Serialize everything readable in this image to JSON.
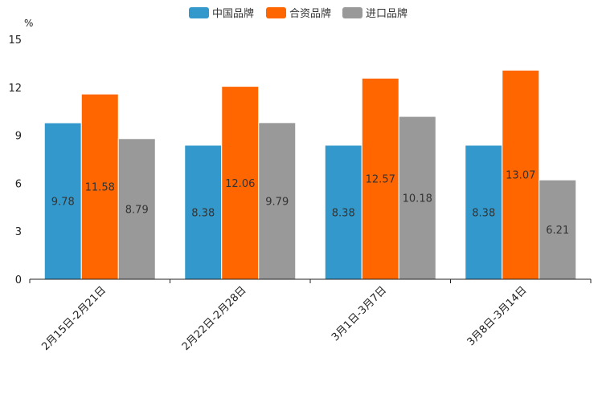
{
  "chart_data": {
    "type": "bar",
    "ylabel": "%",
    "ylim": [
      0,
      15
    ],
    "yticks": [
      0,
      3,
      6,
      9,
      12,
      15
    ],
    "categories": [
      "2月15日-2月21日",
      "2月22日-2月28日",
      "3月1日-3月7日",
      "3月8日-3月14日"
    ],
    "series": [
      {
        "name": "中国品牌",
        "color": "#3399cc",
        "values": [
          9.78,
          8.38,
          8.38,
          8.38
        ],
        "labels": [
          "9.78",
          "8.38",
          "8.38",
          "8.38"
        ]
      },
      {
        "name": "合资品牌",
        "color": "#ff6600",
        "values": [
          11.58,
          12.06,
          12.57,
          13.07
        ],
        "labels": [
          "11.58",
          "12.06",
          "12.57",
          "13.07"
        ]
      },
      {
        "name": "进口品牌",
        "color": "#999999",
        "values": [
          8.79,
          9.79,
          10.18,
          6.21
        ],
        "labels": [
          "8.79",
          "9.79",
          "10.18",
          "6.21"
        ]
      }
    ],
    "legend_position": "top-center",
    "grid": false
  }
}
